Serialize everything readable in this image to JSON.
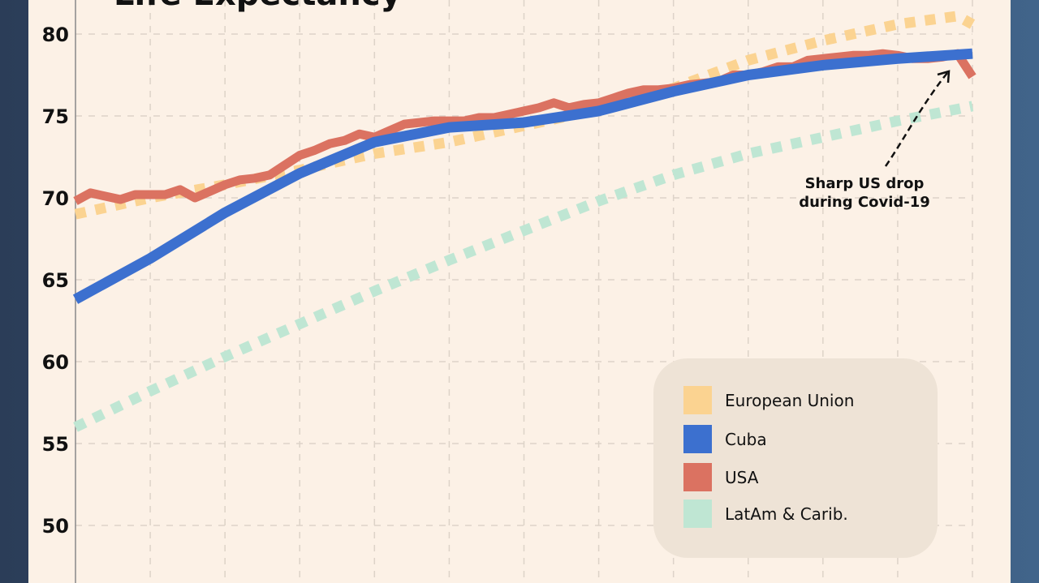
{
  "chart_data": {
    "type": "line",
    "title": "Life Expectancy",
    "xlabel": "",
    "ylabel": "",
    "xlim": [
      1960,
      2020
    ],
    "ylim": [
      47,
      82
    ],
    "yticks": [
      50,
      55,
      60,
      65,
      70,
      75,
      80
    ],
    "grid": true,
    "legend_placement": "bottom-right",
    "series": [
      {
        "name": "European Union",
        "color": "#fbd391",
        "style": "dotted",
        "x": [
          1960,
          1965,
          1970,
          1975,
          1980,
          1985,
          1990,
          1995,
          2000,
          2005,
          2010,
          2015,
          2019,
          2020
        ],
        "y": [
          69.0,
          70.0,
          70.8,
          71.7,
          72.7,
          73.4,
          74.4,
          75.4,
          76.7,
          78.4,
          79.6,
          80.6,
          81.1,
          80.6
        ]
      },
      {
        "name": "Cuba",
        "color": "#3c70cf",
        "style": "solid",
        "x": [
          1960,
          1965,
          1970,
          1975,
          1980,
          1985,
          1990,
          1995,
          2000,
          2005,
          2010,
          2015,
          2020
        ],
        "y": [
          63.8,
          66.3,
          69.1,
          71.5,
          73.4,
          74.3,
          74.6,
          75.3,
          76.5,
          77.5,
          78.1,
          78.5,
          78.8
        ]
      },
      {
        "name": "USA",
        "color": "#db7261",
        "style": "solid",
        "x": [
          1960,
          1961,
          1962,
          1963,
          1964,
          1965,
          1966,
          1967,
          1968,
          1969,
          1970,
          1971,
          1972,
          1973,
          1974,
          1975,
          1976,
          1977,
          1978,
          1979,
          1980,
          1981,
          1982,
          1983,
          1984,
          1985,
          1986,
          1987,
          1988,
          1989,
          1990,
          1991,
          1992,
          1993,
          1994,
          1995,
          1996,
          1997,
          1998,
          1999,
          2000,
          2001,
          2002,
          2003,
          2004,
          2005,
          2006,
          2007,
          2008,
          2009,
          2010,
          2011,
          2012,
          2013,
          2014,
          2015,
          2016,
          2017,
          2018,
          2019,
          2020
        ],
        "y": [
          69.8,
          70.3,
          70.1,
          69.9,
          70.2,
          70.2,
          70.2,
          70.5,
          70.0,
          70.4,
          70.8,
          71.1,
          71.2,
          71.4,
          72.0,
          72.6,
          72.9,
          73.3,
          73.5,
          73.9,
          73.7,
          74.1,
          74.5,
          74.6,
          74.7,
          74.7,
          74.7,
          74.9,
          74.9,
          75.1,
          75.3,
          75.5,
          75.8,
          75.5,
          75.7,
          75.8,
          76.1,
          76.4,
          76.6,
          76.6,
          76.7,
          76.9,
          77.0,
          77.1,
          77.5,
          77.5,
          77.7,
          78.0,
          78.0,
          78.4,
          78.5,
          78.6,
          78.7,
          78.7,
          78.8,
          78.7,
          78.5,
          78.5,
          78.6,
          78.8,
          77.4
        ]
      },
      {
        "name": "LatAm & Carib.",
        "color": "#bfe6d3",
        "style": "dotted",
        "x": [
          1960,
          1965,
          1970,
          1975,
          1980,
          1985,
          1990,
          1995,
          2000,
          2005,
          2010,
          2015,
          2020
        ],
        "y": [
          56.0,
          58.2,
          60.3,
          62.3,
          64.3,
          66.2,
          68.0,
          69.8,
          71.4,
          72.7,
          73.7,
          74.7,
          75.6
        ]
      }
    ],
    "annotations": [
      {
        "text_line1": "Sharp US drop",
        "text_line2": "during Covid-19",
        "points_to": {
          "x": 2018,
          "y": 78.4
        }
      }
    ]
  }
}
